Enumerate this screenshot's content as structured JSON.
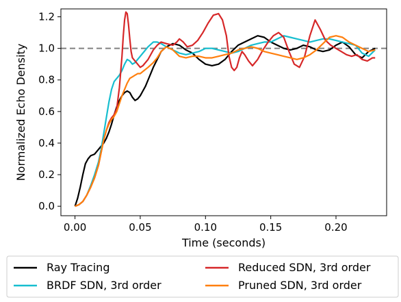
{
  "chart_data": {
    "type": "line",
    "title": "",
    "xlabel": "Time (seconds)",
    "ylabel": "Normalized Echo Density",
    "xlim": [
      -0.0108,
      0.2388
    ],
    "ylim": [
      -0.06,
      1.25
    ],
    "xticks": [
      0.0,
      0.05,
      0.1,
      0.15,
      0.2
    ],
    "xtick_labels": [
      "0.00",
      "0.05",
      "0.10",
      "0.15",
      "0.20"
    ],
    "yticks": [
      0.0,
      0.2,
      0.4,
      0.6,
      0.8,
      1.0,
      1.2
    ],
    "ytick_labels": [
      "0.0",
      "0.2",
      "0.4",
      "0.6",
      "0.8",
      "1.0",
      "1.2"
    ],
    "grid": false,
    "legend_position": "below-plot",
    "reference_line": {
      "y": 1.0,
      "style": "dashed",
      "color": "#808080"
    },
    "series": [
      {
        "name": "Ray Tracing",
        "color": "#000000",
        "x": [
          0.0,
          0.002,
          0.004,
          0.006,
          0.008,
          0.01,
          0.012,
          0.015,
          0.018,
          0.02,
          0.022,
          0.024,
          0.026,
          0.028,
          0.03,
          0.032,
          0.034,
          0.036,
          0.038,
          0.04,
          0.042,
          0.044,
          0.046,
          0.048,
          0.05,
          0.052,
          0.054,
          0.056,
          0.058,
          0.06,
          0.063,
          0.066,
          0.07,
          0.075,
          0.08,
          0.085,
          0.09,
          0.095,
          0.1,
          0.105,
          0.11,
          0.115,
          0.12,
          0.125,
          0.13,
          0.135,
          0.14,
          0.145,
          0.15,
          0.155,
          0.16,
          0.165,
          0.17,
          0.175,
          0.18,
          0.185,
          0.19,
          0.195,
          0.2,
          0.205,
          0.21,
          0.215,
          0.22,
          0.225,
          0.23
        ],
        "y": [
          0.0,
          0.05,
          0.12,
          0.2,
          0.27,
          0.3,
          0.32,
          0.33,
          0.36,
          0.38,
          0.4,
          0.43,
          0.47,
          0.52,
          0.58,
          0.63,
          0.67,
          0.7,
          0.72,
          0.73,
          0.72,
          0.69,
          0.67,
          0.68,
          0.7,
          0.73,
          0.76,
          0.8,
          0.84,
          0.88,
          0.93,
          0.98,
          1.01,
          1.03,
          1.02,
          0.99,
          0.97,
          0.93,
          0.9,
          0.89,
          0.9,
          0.93,
          0.98,
          1.02,
          1.04,
          1.06,
          1.08,
          1.07,
          1.04,
          1.02,
          1.0,
          0.99,
          1.0,
          1.02,
          1.01,
          0.99,
          0.98,
          0.99,
          1.02,
          1.04,
          1.01,
          0.96,
          0.94,
          0.98,
          1.0
        ]
      },
      {
        "name": "BRDF SDN, 3rd order",
        "color": "#17becf",
        "x": [
          0.0,
          0.003,
          0.006,
          0.009,
          0.012,
          0.015,
          0.018,
          0.02,
          0.022,
          0.024,
          0.026,
          0.028,
          0.03,
          0.032,
          0.034,
          0.036,
          0.038,
          0.04,
          0.042,
          0.044,
          0.046,
          0.048,
          0.05,
          0.053,
          0.056,
          0.06,
          0.063,
          0.066,
          0.07,
          0.075,
          0.08,
          0.085,
          0.09,
          0.095,
          0.1,
          0.105,
          0.11,
          0.115,
          0.12,
          0.125,
          0.13,
          0.135,
          0.14,
          0.145,
          0.15,
          0.155,
          0.16,
          0.165,
          0.17,
          0.175,
          0.18,
          0.185,
          0.19,
          0.195,
          0.2,
          0.205,
          0.21,
          0.215,
          0.22,
          0.225,
          0.23
        ],
        "y": [
          0.0,
          0.01,
          0.03,
          0.07,
          0.13,
          0.2,
          0.28,
          0.36,
          0.46,
          0.56,
          0.66,
          0.74,
          0.79,
          0.81,
          0.83,
          0.86,
          0.9,
          0.93,
          0.92,
          0.9,
          0.91,
          0.93,
          0.95,
          0.98,
          1.01,
          1.04,
          1.04,
          1.03,
          1.01,
          0.99,
          0.97,
          0.96,
          0.97,
          0.98,
          1.0,
          1.0,
          0.99,
          0.98,
          0.97,
          0.98,
          1.0,
          1.02,
          1.03,
          1.04,
          1.04,
          1.06,
          1.08,
          1.07,
          1.06,
          1.05,
          1.04,
          1.05,
          1.06,
          1.06,
          1.05,
          1.04,
          1.03,
          1.02,
          0.97,
          0.95,
          0.99
        ]
      },
      {
        "name": "Reduced SDN, 3rd order",
        "color": "#d62728",
        "x": [
          0.0,
          0.003,
          0.006,
          0.009,
          0.012,
          0.015,
          0.018,
          0.02,
          0.022,
          0.024,
          0.026,
          0.028,
          0.03,
          0.032,
          0.034,
          0.036,
          0.037,
          0.038,
          0.039,
          0.04,
          0.041,
          0.042,
          0.043,
          0.044,
          0.046,
          0.048,
          0.05,
          0.052,
          0.054,
          0.056,
          0.058,
          0.06,
          0.063,
          0.066,
          0.07,
          0.075,
          0.078,
          0.08,
          0.083,
          0.086,
          0.09,
          0.094,
          0.098,
          0.102,
          0.106,
          0.11,
          0.113,
          0.116,
          0.118,
          0.12,
          0.122,
          0.124,
          0.126,
          0.128,
          0.13,
          0.133,
          0.136,
          0.14,
          0.144,
          0.148,
          0.152,
          0.156,
          0.16,
          0.164,
          0.168,
          0.172,
          0.176,
          0.18,
          0.184,
          0.188,
          0.192,
          0.196,
          0.2,
          0.204,
          0.208,
          0.212,
          0.216,
          0.22,
          0.224,
          0.228,
          0.23
        ],
        "y": [
          0.0,
          0.01,
          0.03,
          0.07,
          0.12,
          0.18,
          0.26,
          0.34,
          0.42,
          0.48,
          0.53,
          0.56,
          0.58,
          0.62,
          0.75,
          0.95,
          1.08,
          1.18,
          1.23,
          1.22,
          1.15,
          1.06,
          0.98,
          0.94,
          0.92,
          0.9,
          0.88,
          0.89,
          0.91,
          0.93,
          0.96,
          0.99,
          1.02,
          1.04,
          1.03,
          1.02,
          1.04,
          1.06,
          1.04,
          1.01,
          1.02,
          1.05,
          1.1,
          1.16,
          1.21,
          1.22,
          1.18,
          1.08,
          0.95,
          0.88,
          0.86,
          0.88,
          0.94,
          0.98,
          0.96,
          0.92,
          0.89,
          0.93,
          0.99,
          1.04,
          1.08,
          1.1,
          1.07,
          0.98,
          0.9,
          0.88,
          0.95,
          1.08,
          1.18,
          1.12,
          1.05,
          1.02,
          1.0,
          0.98,
          0.96,
          0.95,
          0.96,
          0.93,
          0.92,
          0.94,
          0.94
        ]
      },
      {
        "name": "Pruned SDN, 3rd order",
        "color": "#ff7f0e",
        "x": [
          0.0,
          0.003,
          0.006,
          0.009,
          0.012,
          0.015,
          0.018,
          0.02,
          0.022,
          0.024,
          0.026,
          0.028,
          0.03,
          0.032,
          0.034,
          0.036,
          0.038,
          0.04,
          0.042,
          0.044,
          0.046,
          0.048,
          0.05,
          0.053,
          0.056,
          0.06,
          0.063,
          0.066,
          0.07,
          0.075,
          0.08,
          0.085,
          0.09,
          0.095,
          0.1,
          0.105,
          0.11,
          0.115,
          0.12,
          0.125,
          0.13,
          0.135,
          0.14,
          0.145,
          0.15,
          0.155,
          0.16,
          0.165,
          0.17,
          0.175,
          0.18,
          0.185,
          0.19,
          0.195,
          0.2,
          0.205,
          0.21,
          0.215,
          0.22,
          0.225,
          0.23
        ],
        "y": [
          0.0,
          0.01,
          0.03,
          0.07,
          0.12,
          0.18,
          0.26,
          0.34,
          0.42,
          0.48,
          0.52,
          0.55,
          0.57,
          0.6,
          0.65,
          0.7,
          0.74,
          0.78,
          0.81,
          0.82,
          0.83,
          0.84,
          0.84,
          0.86,
          0.88,
          0.91,
          0.94,
          0.98,
          1.01,
          0.99,
          0.95,
          0.94,
          0.95,
          0.95,
          0.94,
          0.94,
          0.95,
          0.96,
          0.97,
          0.99,
          1.0,
          1.01,
          1.0,
          0.98,
          0.97,
          0.96,
          0.95,
          0.94,
          0.93,
          0.94,
          0.96,
          0.99,
          1.03,
          1.07,
          1.08,
          1.07,
          1.04,
          1.02,
          1.0,
          0.98,
          0.99
        ]
      }
    ]
  }
}
